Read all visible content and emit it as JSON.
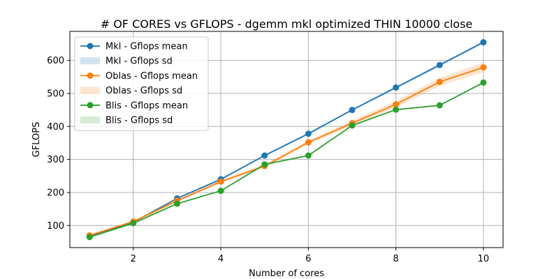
{
  "chart_data": {
    "type": "line",
    "title": "# OF CORES vs GFLOPS - dgemm mkl optimized THIN 10000 close",
    "xlabel": "Number of cores",
    "ylabel": "GFLOPS",
    "x": [
      1,
      2,
      3,
      4,
      5,
      6,
      7,
      8,
      9,
      10
    ],
    "xlim": [
      0.55,
      10.45
    ],
    "ylim": [
      33,
      688
    ],
    "xticks": [
      2,
      4,
      6,
      8,
      10
    ],
    "yticks": [
      100,
      200,
      300,
      400,
      500,
      600
    ],
    "grid": true,
    "legend_position": "top-left",
    "series": [
      {
        "name": "Mkl - Gflops mean",
        "sd_name": "Mkl - Gflops sd",
        "color": "#1f77b4",
        "values": [
          68,
          110,
          182,
          240,
          312,
          378,
          450,
          518,
          586,
          655
        ],
        "sd": [
          2,
          2,
          2,
          3,
          3,
          3,
          3,
          4,
          4,
          4
        ]
      },
      {
        "name": "Oblas - Gflops mean",
        "sd_name": "Oblas - Gflops sd",
        "color": "#ff7f0e",
        "values": [
          70,
          112,
          175,
          233,
          280,
          352,
          410,
          467,
          535,
          579
        ],
        "sd": [
          3,
          3,
          4,
          5,
          6,
          6,
          8,
          10,
          12,
          15
        ]
      },
      {
        "name": "Blis - Gflops mean",
        "sd_name": "Blis - Gflops sd",
        "color": "#2ca02c",
        "values": [
          65,
          107,
          166,
          205,
          285,
          312,
          403,
          451,
          464,
          533
        ],
        "sd": [
          1,
          1,
          1,
          1,
          2,
          2,
          2,
          2,
          2,
          2
        ]
      }
    ]
  }
}
